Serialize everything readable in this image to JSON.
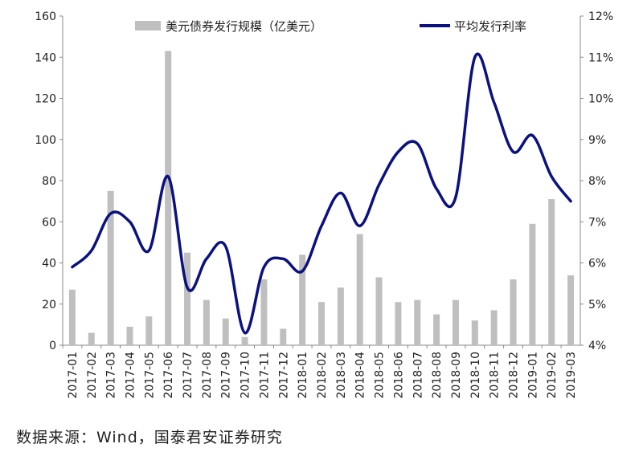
{
  "chart_data": {
    "type": "bar",
    "categories": [
      "2017-01",
      "2017-02",
      "2017-03",
      "2017-04",
      "2017-05",
      "2017-06",
      "2017-07",
      "2017-08",
      "2017-09",
      "2017-10",
      "2017-11",
      "2017-12",
      "2018-01",
      "2018-02",
      "2018-03",
      "2018-04",
      "2018-05",
      "2018-06",
      "2018-07",
      "2018-08",
      "2018-09",
      "2018-10",
      "2018-11",
      "2018-12",
      "2019-01",
      "2019-02",
      "2019-03"
    ],
    "series": [
      {
        "name": "美元债券发行规模（亿美元）",
        "type": "bar",
        "axis": "left",
        "values": [
          27,
          6,
          75,
          9,
          14,
          143,
          45,
          22,
          13,
          4,
          32,
          8,
          44,
          21,
          28,
          54,
          33,
          21,
          22,
          15,
          22,
          12,
          17,
          32,
          59,
          71,
          34
        ],
        "color": "#bfbfbf"
      },
      {
        "name": "平均发行利率",
        "type": "line",
        "axis": "right",
        "values": [
          5.9,
          6.3,
          7.2,
          7.0,
          6.3,
          8.1,
          5.4,
          6.1,
          6.4,
          4.3,
          5.9,
          6.1,
          5.8,
          6.9,
          7.7,
          6.9,
          7.9,
          8.7,
          8.9,
          7.8,
          7.6,
          11.0,
          9.9,
          8.7,
          9.1,
          8.1,
          7.5
        ],
        "color": "#0b1180"
      }
    ],
    "y_left": {
      "ticks": [
        "0",
        "20",
        "40",
        "60",
        "80",
        "100",
        "120",
        "140",
        "160"
      ],
      "ylim": [
        0,
        160
      ]
    },
    "y_right": {
      "ticks": [
        "4%",
        "5%",
        "6%",
        "7%",
        "8%",
        "9%",
        "10%",
        "11%",
        "12%"
      ],
      "ylim": [
        4,
        12
      ]
    },
    "legend": "top-center"
  },
  "source": "数据来源：Wind，国泰君安证券研究"
}
